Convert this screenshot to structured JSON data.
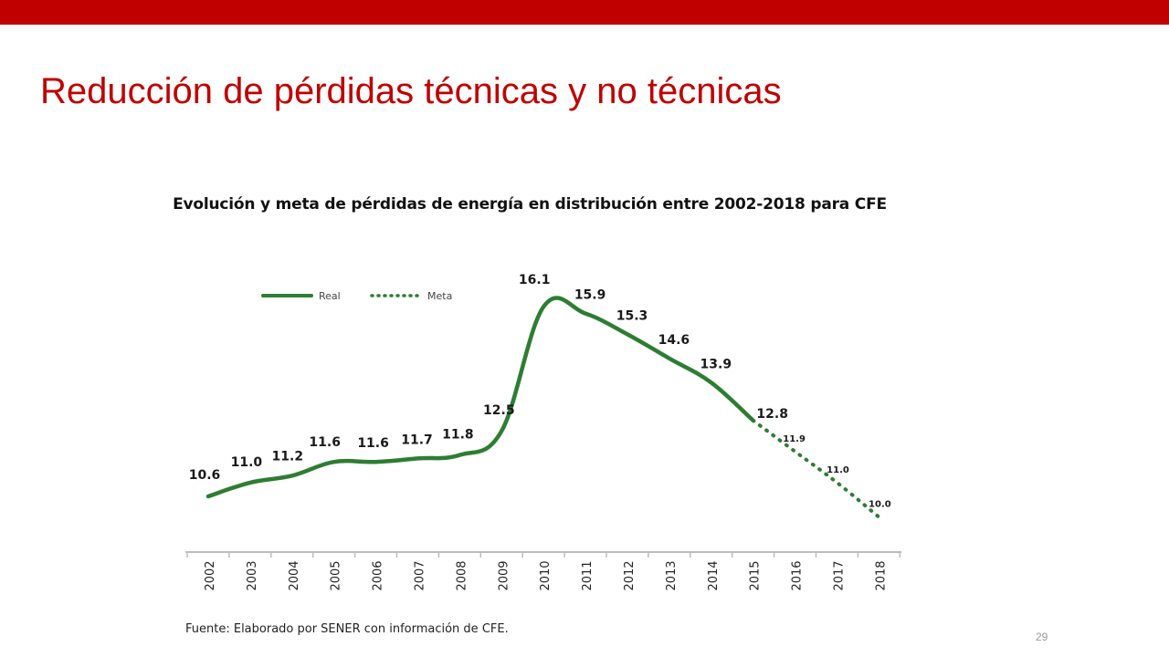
{
  "slide": {
    "title": "Reducción de pérdidas técnicas y no técnicas",
    "chart_title": "Evolución y meta de pérdidas de energía en distribución entre 2002-2018 para CFE",
    "source": "Fuente: Elaborado por SENER con información de CFE.",
    "page_number": "29",
    "accent_color": "#c00000"
  },
  "chart_data": {
    "type": "line",
    "title": "Evolución y meta de pérdidas de energía en distribución entre 2002-2018 para CFE",
    "xlabel": "",
    "ylabel": "",
    "categories": [
      "2002",
      "2003",
      "2004",
      "2005",
      "2006",
      "2007",
      "2008",
      "2009",
      "2010",
      "2011",
      "2012",
      "2013",
      "2014",
      "2015",
      "2016",
      "2017",
      "2018"
    ],
    "series": [
      {
        "name": "Real",
        "style": "solid",
        "color": "#2e7d32",
        "x": [
          "2002",
          "2003",
          "2004",
          "2005",
          "2006",
          "2007",
          "2008",
          "2009",
          "2010",
          "2011",
          "2012",
          "2013",
          "2014",
          "2015"
        ],
        "values": [
          10.6,
          11.0,
          11.2,
          11.6,
          11.6,
          11.7,
          11.8,
          12.5,
          16.1,
          15.9,
          15.3,
          14.6,
          13.9,
          12.8
        ],
        "labels": [
          "10.6",
          "11.0",
          "11.2",
          "11.6",
          "11.6",
          "11.7",
          "11.8",
          "12.5",
          "16.1",
          "15.9",
          "15.3",
          "14.6",
          "13.9",
          "12.8"
        ]
      },
      {
        "name": "Meta",
        "style": "dotted",
        "color": "#2e7d32",
        "x": [
          "2015",
          "2016",
          "2017",
          "2018"
        ],
        "values": [
          12.8,
          11.9,
          11.0,
          10.0
        ],
        "labels": [
          "",
          "11.9",
          "11.0",
          "10.0"
        ]
      }
    ],
    "legend_position": "top-left",
    "grid": false
  }
}
